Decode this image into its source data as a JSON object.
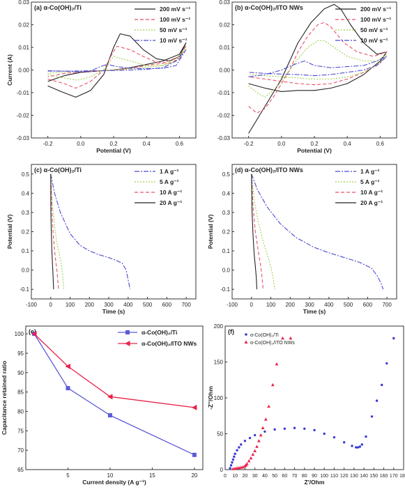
{
  "chart_data": [
    {
      "panel": "a",
      "type": "line",
      "label": "(a) α-Co(OH)₂/Ti",
      "xlabel": "Potential (V)",
      "ylabel": "Current (A)",
      "xlim": [
        -0.3,
        0.7
      ],
      "ylim": [
        -0.03,
        0.03
      ],
      "xticks": [
        -0.2,
        0.0,
        0.2,
        0.4,
        0.6
      ],
      "yticks": [
        -0.03,
        -0.02,
        -0.01,
        0.0,
        0.01,
        0.02,
        0.03
      ],
      "xtick_labels": [
        "-0.2",
        "0.0",
        "0.2",
        "0.4",
        "0.6"
      ],
      "ytick_labels": [
        "-0.03",
        "-0.02",
        "-0.01",
        "0.00",
        "0.01",
        "0.02",
        "0.03"
      ],
      "legend_position": "top-right",
      "series": [
        {
          "name": "200 mV s⁻¹",
          "color": "#222222",
          "dash": "",
          "x": [
            -0.2,
            -0.12,
            -0.03,
            0.06,
            0.14,
            0.2,
            0.24,
            0.3,
            0.38,
            0.46,
            0.54,
            0.6,
            0.64,
            0.6,
            0.5,
            0.4,
            0.3,
            0.2,
            0.1,
            0.0,
            -0.1,
            -0.2
          ],
          "y": [
            -0.007,
            -0.0095,
            -0.012,
            -0.009,
            -0.002,
            0.01,
            0.016,
            0.015,
            0.009,
            0.005,
            0.004,
            0.006,
            0.012,
            0.007,
            0.004,
            0.0025,
            0.001,
            0.0,
            -0.0005,
            -0.001,
            -0.0025,
            -0.005
          ]
        },
        {
          "name": "100 mV s⁻¹",
          "color": "#e8506a",
          "dash": "5,3",
          "x": [
            -0.2,
            -0.1,
            -0.03,
            0.06,
            0.14,
            0.19,
            0.22,
            0.3,
            0.38,
            0.46,
            0.54,
            0.6,
            0.64,
            0.6,
            0.5,
            0.4,
            0.3,
            0.2,
            0.1,
            0.0,
            -0.1,
            -0.2
          ],
          "y": [
            -0.004,
            -0.006,
            -0.008,
            -0.005,
            0.0,
            0.007,
            0.0105,
            0.009,
            0.006,
            0.0035,
            0.003,
            0.005,
            0.011,
            0.006,
            0.003,
            0.002,
            0.0008,
            0.0,
            -0.0005,
            -0.0008,
            -0.0015,
            -0.003
          ]
        },
        {
          "name": "50 mV s⁻¹",
          "color": "#9fd14a",
          "dash": "2,2",
          "x": [
            -0.2,
            -0.1,
            -0.02,
            0.06,
            0.14,
            0.18,
            0.2,
            0.3,
            0.4,
            0.5,
            0.58,
            0.64,
            0.58,
            0.5,
            0.4,
            0.3,
            0.2,
            0.1,
            0.0,
            -0.1,
            -0.2
          ],
          "y": [
            -0.002,
            -0.0035,
            -0.0045,
            -0.003,
            0.0,
            0.004,
            0.006,
            0.004,
            0.002,
            0.002,
            0.004,
            0.01,
            0.005,
            0.002,
            0.0012,
            0.0005,
            0.0,
            -0.0003,
            -0.0005,
            -0.0008,
            -0.0015
          ]
        },
        {
          "name": "10 mV s⁻¹",
          "color": "#4a4ad0",
          "dash": "7,2,2,2",
          "x": [
            -0.2,
            -0.1,
            0.0,
            0.06,
            0.12,
            0.16,
            0.22,
            0.3,
            0.4,
            0.5,
            0.58,
            0.64,
            0.58,
            0.5,
            0.4,
            0.3,
            0.2,
            0.1,
            0.0,
            -0.1,
            -0.2
          ],
          "y": [
            -0.0003,
            -0.0005,
            -0.0008,
            -0.0004,
            0.0015,
            0.0025,
            0.0015,
            0.0008,
            0.0006,
            0.0008,
            0.002,
            0.009,
            0.004,
            0.001,
            0.0003,
            0.0,
            -0.0002,
            -0.0003,
            -0.0004,
            -0.0005,
            -0.0005
          ]
        }
      ]
    },
    {
      "panel": "b",
      "type": "line",
      "label": "(b) α-Co(OH)₂/ITO NWs",
      "xlabel": "Potential (V)",
      "ylabel": "",
      "xlim": [
        -0.3,
        0.7
      ],
      "ylim": [
        -0.03,
        0.03
      ],
      "xticks": [
        -0.2,
        0.0,
        0.2,
        0.4,
        0.6
      ],
      "yticks": [
        -0.03,
        -0.02,
        -0.01,
        0.0,
        0.01,
        0.02,
        0.03
      ],
      "xtick_labels": [
        "-0.2",
        "0.0",
        "0.2",
        "0.4",
        "0.6"
      ],
      "ytick_labels": [
        "-0.03",
        "-0.02",
        "-0.01",
        "0.00",
        "0.01",
        "0.02",
        "0.03"
      ],
      "legend_position": "top-right",
      "series": [
        {
          "name": "200 mV s⁻¹",
          "color": "#222222",
          "dash": "",
          "x": [
            -0.2,
            -0.15,
            -0.1,
            -0.05,
            0.0,
            0.05,
            0.1,
            0.18,
            0.26,
            0.32,
            0.36,
            0.42,
            0.5,
            0.58,
            0.64,
            0.6,
            0.5,
            0.4,
            0.3,
            0.2,
            0.1,
            0.0,
            -0.1,
            -0.2
          ],
          "y": [
            -0.028,
            -0.022,
            -0.016,
            -0.01,
            -0.004,
            0.004,
            0.012,
            0.021,
            0.027,
            0.029,
            0.027,
            0.02,
            0.012,
            0.007,
            0.008,
            0.004,
            -0.002,
            -0.006,
            -0.008,
            -0.009,
            -0.009,
            -0.0095,
            -0.008,
            -0.006
          ]
        },
        {
          "name": "100 mV s⁻¹",
          "color": "#e8506a",
          "dash": "5,3",
          "x": [
            -0.2,
            -0.15,
            -0.1,
            -0.05,
            0.0,
            0.05,
            0.1,
            0.16,
            0.22,
            0.26,
            0.3,
            0.38,
            0.46,
            0.56,
            0.64,
            0.6,
            0.5,
            0.4,
            0.3,
            0.2,
            0.1,
            0.0,
            -0.1,
            -0.2
          ],
          "y": [
            -0.016,
            -0.019,
            -0.017,
            -0.012,
            -0.006,
            0.0,
            0.008,
            0.015,
            0.02,
            0.021,
            0.019,
            0.012,
            0.008,
            0.006,
            0.008,
            0.003,
            -0.001,
            -0.004,
            -0.006,
            -0.0065,
            -0.006,
            -0.005,
            -0.004,
            -0.003
          ]
        },
        {
          "name": "50 mV s⁻¹",
          "color": "#9fd14a",
          "dash": "2,2",
          "x": [
            -0.2,
            -0.15,
            -0.1,
            -0.05,
            0.0,
            0.05,
            0.1,
            0.16,
            0.22,
            0.26,
            0.32,
            0.4,
            0.5,
            0.58,
            0.64,
            0.58,
            0.5,
            0.4,
            0.3,
            0.2,
            0.1,
            0.0,
            -0.1,
            -0.2
          ],
          "y": [
            -0.007,
            -0.01,
            -0.012,
            -0.009,
            -0.005,
            0.0,
            0.005,
            0.01,
            0.013,
            0.013,
            0.01,
            0.006,
            0.004,
            0.004,
            0.007,
            0.002,
            -0.001,
            -0.003,
            -0.004,
            -0.004,
            -0.0035,
            -0.003,
            -0.0025,
            -0.002
          ]
        },
        {
          "name": "10 mV s⁻¹",
          "color": "#4a4ad0",
          "dash": "7,2,2,2",
          "x": [
            -0.2,
            -0.1,
            0.0,
            0.06,
            0.1,
            0.14,
            0.2,
            0.3,
            0.4,
            0.5,
            0.58,
            0.64,
            0.58,
            0.5,
            0.4,
            0.3,
            0.2,
            0.1,
            0.0,
            -0.1,
            -0.2
          ],
          "y": [
            -0.003,
            -0.002,
            0.0,
            0.002,
            0.003,
            0.004,
            0.002,
            0.001,
            0.0015,
            0.002,
            0.004,
            0.006,
            0.002,
            0.0,
            -0.001,
            -0.002,
            -0.0025,
            -0.002,
            -0.0018,
            -0.0015,
            -0.001
          ]
        }
      ]
    },
    {
      "panel": "c",
      "type": "line",
      "label": "(c) α-Co(OH)₂/Ti",
      "xlabel": "Time (s)",
      "ylabel": "Potential (V)",
      "xlim": [
        -100,
        750
      ],
      "ylim": [
        -0.15,
        0.55
      ],
      "xticks": [
        -100,
        0,
        100,
        200,
        300,
        400,
        500,
        600,
        700
      ],
      "yticks": [
        -0.1,
        0.0,
        0.1,
        0.2,
        0.3,
        0.4,
        0.5
      ],
      "xtick_labels": [
        "-100",
        "0",
        "100",
        "200",
        "300",
        "400",
        "500",
        "600",
        "700"
      ],
      "ytick_labels": [
        "-0.1",
        "0.0",
        "0.1",
        "0.2",
        "0.3",
        "0.4",
        "0.5"
      ],
      "legend_position": "top-right",
      "series": [
        {
          "name": "1 A g⁻¹",
          "color": "#4a4ad0",
          "dash": "7,2,2,2",
          "x": [
            0,
            20,
            50,
            100,
            150,
            200,
            250,
            300,
            340,
            370,
            390,
            400,
            410
          ],
          "y": [
            0.5,
            0.4,
            0.3,
            0.19,
            0.13,
            0.1,
            0.08,
            0.065,
            0.05,
            0.035,
            0.0,
            -0.05,
            -0.1
          ]
        },
        {
          "name": "5 A g⁻¹",
          "color": "#9fd14a",
          "dash": "2,2",
          "x": [
            0,
            8,
            18,
            30,
            45,
            55,
            62,
            68
          ],
          "y": [
            0.5,
            0.35,
            0.25,
            0.15,
            0.08,
            0.03,
            -0.03,
            -0.1
          ]
        },
        {
          "name": "10 A g⁻¹",
          "color": "#e8506a",
          "dash": "5,3",
          "x": [
            0,
            5,
            12,
            20,
            28,
            32,
            36,
            40
          ],
          "y": [
            0.5,
            0.33,
            0.2,
            0.1,
            0.03,
            0.0,
            -0.05,
            -0.1
          ]
        },
        {
          "name": "20 A g⁻¹",
          "color": "#222222",
          "dash": "",
          "x": [
            0,
            1,
            3,
            6,
            9,
            12,
            15
          ],
          "y": [
            0.5,
            0.3,
            0.2,
            0.1,
            0.03,
            -0.03,
            -0.1
          ]
        }
      ]
    },
    {
      "panel": "d",
      "type": "line",
      "label": "(d) α-Co(OH)₂/ITO NWs",
      "xlabel": "Time (s)",
      "ylabel": "Potential (V)",
      "xlim": [
        -100,
        750
      ],
      "ylim": [
        -0.15,
        0.55
      ],
      "xticks": [
        -100,
        0,
        100,
        200,
        300,
        400,
        500,
        600,
        700
      ],
      "yticks": [
        -0.1,
        0.0,
        0.1,
        0.2,
        0.3,
        0.4,
        0.5
      ],
      "xtick_labels": [
        "-100",
        "0",
        "100",
        "200",
        "300",
        "400",
        "500",
        "600",
        "700"
      ],
      "ytick_labels": [
        "-0.1",
        "0.0",
        "0.1",
        "0.2",
        "0.3",
        "0.4",
        "0.5"
      ],
      "legend_position": "top-right",
      "series": [
        {
          "name": "1 A g⁻¹",
          "color": "#4a4ad0",
          "dash": "7,2,2,2",
          "x": [
            0,
            30,
            80,
            150,
            230,
            320,
            400,
            480,
            560,
            620,
            650,
            670,
            680
          ],
          "y": [
            0.5,
            0.42,
            0.33,
            0.24,
            0.17,
            0.12,
            0.09,
            0.065,
            0.04,
            0.01,
            -0.03,
            -0.07,
            -0.1
          ]
        },
        {
          "name": "5 A g⁻¹",
          "color": "#9fd14a",
          "dash": "2,2",
          "x": [
            0,
            15,
            35,
            60,
            85,
            100,
            112,
            120
          ],
          "y": [
            0.5,
            0.36,
            0.25,
            0.15,
            0.07,
            0.02,
            -0.04,
            -0.1
          ]
        },
        {
          "name": "10 A g⁻¹",
          "color": "#e8506a",
          "dash": "5,3",
          "x": [
            0,
            8,
            20,
            35,
            48,
            55,
            60
          ],
          "y": [
            0.5,
            0.33,
            0.2,
            0.1,
            0.02,
            -0.04,
            -0.1
          ]
        },
        {
          "name": "20 A g⁻¹",
          "color": "#222222",
          "dash": "",
          "x": [
            0,
            3,
            8,
            14,
            20,
            25,
            28
          ],
          "y": [
            0.5,
            0.3,
            0.18,
            0.08,
            0.02,
            -0.04,
            -0.1
          ]
        }
      ]
    },
    {
      "panel": "e",
      "type": "line",
      "label": "(e)",
      "xlabel": "Current density (A g⁻¹)",
      "ylabel": "Capacitance retained ratio",
      "xlim": [
        0,
        21
      ],
      "ylim": [
        65,
        102
      ],
      "xticks": [
        5,
        10,
        15,
        20
      ],
      "yticks": [
        65,
        70,
        75,
        80,
        85,
        90,
        95,
        100
      ],
      "xtick_labels": [
        "5",
        "10",
        "15",
        "20"
      ],
      "ytick_labels": [
        "65",
        "70",
        "75",
        "80",
        "85",
        "90",
        "95",
        "100"
      ],
      "legend_position": "top-right",
      "series": [
        {
          "name": "α-Co(OH)₂/Ti",
          "color": "#5b5bd6",
          "marker": "square",
          "x": [
            1,
            5,
            10,
            20
          ],
          "y": [
            100,
            86,
            79,
            68.8
          ]
        },
        {
          "name": "α-Co(OH)₂/ITO NWs",
          "color": "#e8244a",
          "marker": "triangle-left",
          "x": [
            1,
            5,
            10,
            20
          ],
          "y": [
            100,
            91.6,
            83.8,
            81
          ]
        }
      ]
    },
    {
      "panel": "f",
      "type": "scatter",
      "label": "(f)",
      "xlabel": "Z'/Ohm",
      "ylabel": "-Z''/Ohm",
      "xlim": [
        0,
        180
      ],
      "ylim": [
        0,
        200
      ],
      "xticks": [
        0,
        10,
        20,
        30,
        40,
        50,
        60,
        70,
        80,
        90,
        100,
        110,
        120,
        130,
        140,
        150,
        160,
        170,
        180
      ],
      "yticks": [
        0,
        50,
        100,
        150,
        200
      ],
      "xtick_labels": [
        "0",
        "10",
        "20",
        "30",
        "40",
        "50",
        "60",
        "70",
        "80",
        "90",
        "100",
        "110",
        "120",
        "130",
        "140",
        "150",
        "160",
        "170",
        "180"
      ],
      "ytick_labels": [
        "0",
        "50",
        "100",
        "150",
        "200"
      ],
      "legend_position": "top-left",
      "series": [
        {
          "name": "α-Co(OH)₂/Ti",
          "color": "#3a3ad8",
          "marker": "circle",
          "x": [
            5,
            6,
            7,
            8,
            9,
            10,
            12,
            14,
            16,
            20,
            25,
            30,
            40,
            50,
            60,
            70,
            80,
            90,
            100,
            110,
            120,
            128,
            132,
            134,
            136,
            138,
            142,
            148,
            153,
            158,
            163,
            170
          ],
          "y": [
            2,
            6,
            10,
            14,
            18,
            22,
            27,
            31,
            35,
            40,
            44,
            48,
            53,
            56,
            57,
            58,
            57,
            55,
            50,
            45,
            38,
            33,
            31,
            31,
            32,
            35,
            46,
            74,
            96,
            118,
            148,
            183
          ]
        },
        {
          "name": "α-Co(OH)₂/ITO NWs",
          "color": "#e8244a",
          "marker": "triangle",
          "x": [
            8,
            10,
            12,
            14,
            16,
            18,
            20,
            21,
            22,
            24,
            26,
            28,
            30,
            32,
            34,
            36,
            38,
            41,
            44,
            48,
            52,
            58,
            66
          ],
          "y": [
            1,
            1.5,
            2,
            2.5,
            3,
            3.5,
            5,
            6,
            8,
            12,
            16,
            21,
            26,
            32,
            40,
            48,
            58,
            70,
            88,
            118,
            147,
            183,
            183
          ]
        }
      ]
    }
  ]
}
